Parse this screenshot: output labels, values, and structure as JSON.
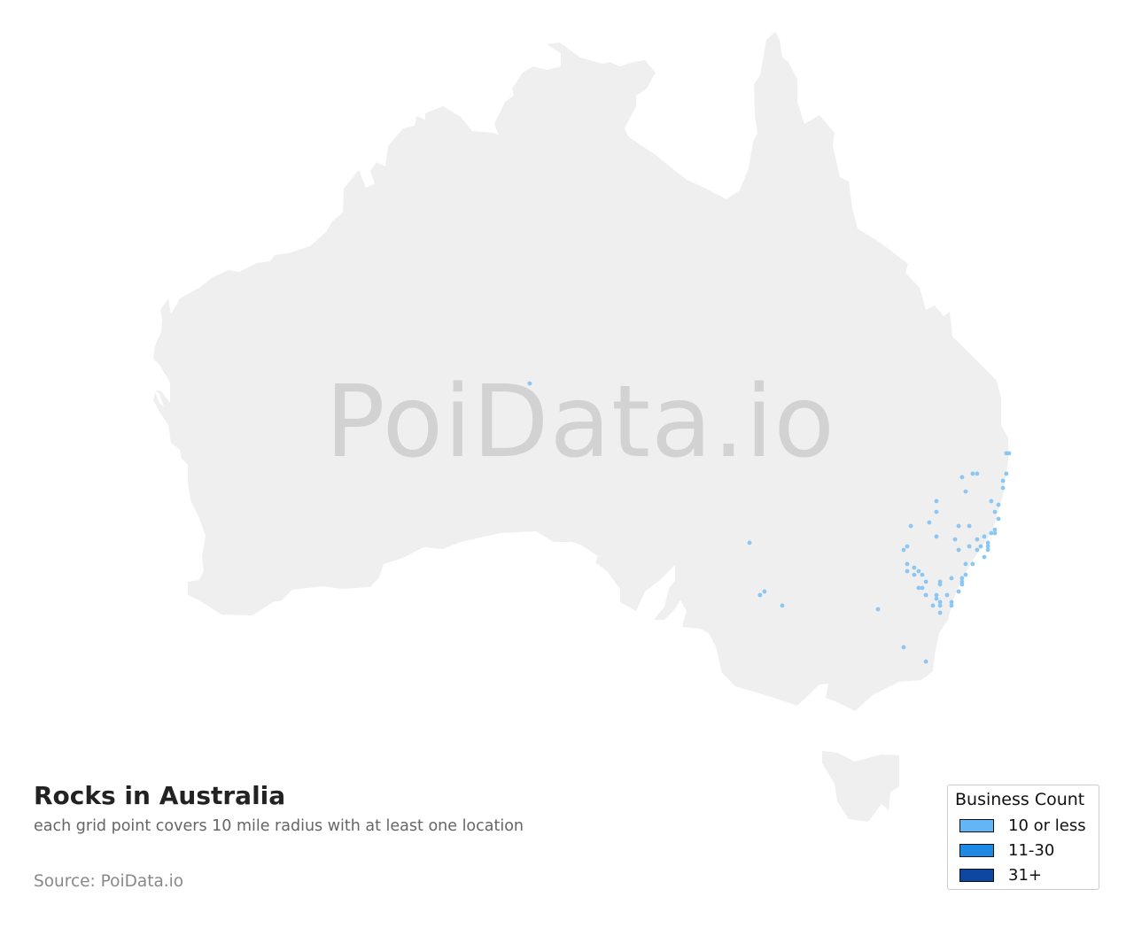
{
  "title": "Rocks in Australia",
  "subtitle": "each grid point covers 10 mile radius with at least one location",
  "source": "Source: PoiData.io",
  "watermark": "PoiData.io",
  "colors": {
    "land": "#efefef",
    "point": "#8cc6f3"
  },
  "legend": {
    "title": "Business Count",
    "items": [
      {
        "label": "10 or less",
        "color": "#64b5f6"
      },
      {
        "label": "11-30",
        "color": "#1e88e5"
      },
      {
        "label": "31+",
        "color": "#0d47a1"
      }
    ]
  },
  "points_lon_lat": [
    [
      153.53,
      -28.29
    ],
    [
      153.66,
      -28.29
    ],
    [
      151.44,
      -29.29
    ],
    [
      151.94,
      -29.14
    ],
    [
      152.15,
      -29.14
    ],
    [
      153.53,
      -29.14
    ],
    [
      153.37,
      -29.44
    ],
    [
      153.37,
      -29.74
    ],
    [
      151.61,
      -29.89
    ],
    [
      150.23,
      -30.29
    ],
    [
      152.82,
      -30.29
    ],
    [
      153.16,
      -30.44
    ],
    [
      150.23,
      -30.74
    ],
    [
      152.99,
      -30.74
    ],
    [
      149.89,
      -31.18
    ],
    [
      149.02,
      -31.33
    ],
    [
      151.28,
      -31.33
    ],
    [
      151.78,
      -31.33
    ],
    [
      153.16,
      -31.03
    ],
    [
      152.99,
      -31.48
    ],
    [
      152.82,
      -31.63
    ],
    [
      152.99,
      -31.63
    ],
    [
      150.23,
      -31.77
    ],
    [
      151.11,
      -31.89
    ],
    [
      152.15,
      -31.89
    ],
    [
      152.49,
      -31.77
    ],
    [
      152.66,
      -32.03
    ],
    [
      152.66,
      -32.18
    ],
    [
      152.66,
      -32.33
    ],
    [
      148.85,
      -32.18
    ],
    [
      148.68,
      -32.33
    ],
    [
      151.28,
      -32.33
    ],
    [
      151.78,
      -32.18
    ],
    [
      152.32,
      -32.18
    ],
    [
      152.15,
      -32.33
    ],
    [
      152.49,
      -32.63
    ],
    [
      148.85,
      -32.92
    ],
    [
      151.61,
      -32.92
    ],
    [
      151.94,
      -32.92
    ],
    [
      148.85,
      -33.22
    ],
    [
      149.18,
      -33.07
    ],
    [
      149.39,
      -33.22
    ],
    [
      149.18,
      -33.37
    ],
    [
      149.56,
      -33.37
    ],
    [
      151.61,
      -33.37
    ],
    [
      151.44,
      -33.51
    ],
    [
      151.44,
      -33.66
    ],
    [
      151.44,
      -33.77
    ],
    [
      150.94,
      -33.51
    ],
    [
      149.73,
      -33.66
    ],
    [
      150.4,
      -33.66
    ],
    [
      150.4,
      -33.77
    ],
    [
      149.39,
      -33.92
    ],
    [
      149.56,
      -33.92
    ],
    [
      151.28,
      -34.07
    ],
    [
      149.73,
      -34.22
    ],
    [
      150.23,
      -34.22
    ],
    [
      150.73,
      -34.22
    ],
    [
      150.23,
      -34.37
    ],
    [
      150.4,
      -34.51
    ],
    [
      150.94,
      -34.51
    ],
    [
      150.06,
      -34.66
    ],
    [
      150.4,
      -34.66
    ],
    [
      150.94,
      -34.66
    ],
    [
      150.4,
      -34.96
    ],
    [
      147.47,
      -34.81
    ],
    [
      148.68,
      -36.4
    ],
    [
      149.73,
      -37.0
    ],
    [
      131.02,
      -25.37
    ],
    [
      141.4,
      -32.03
    ],
    [
      141.9,
      -34.22
    ],
    [
      142.11,
      -34.07
    ],
    [
      142.95,
      -34.66
    ]
  ]
}
